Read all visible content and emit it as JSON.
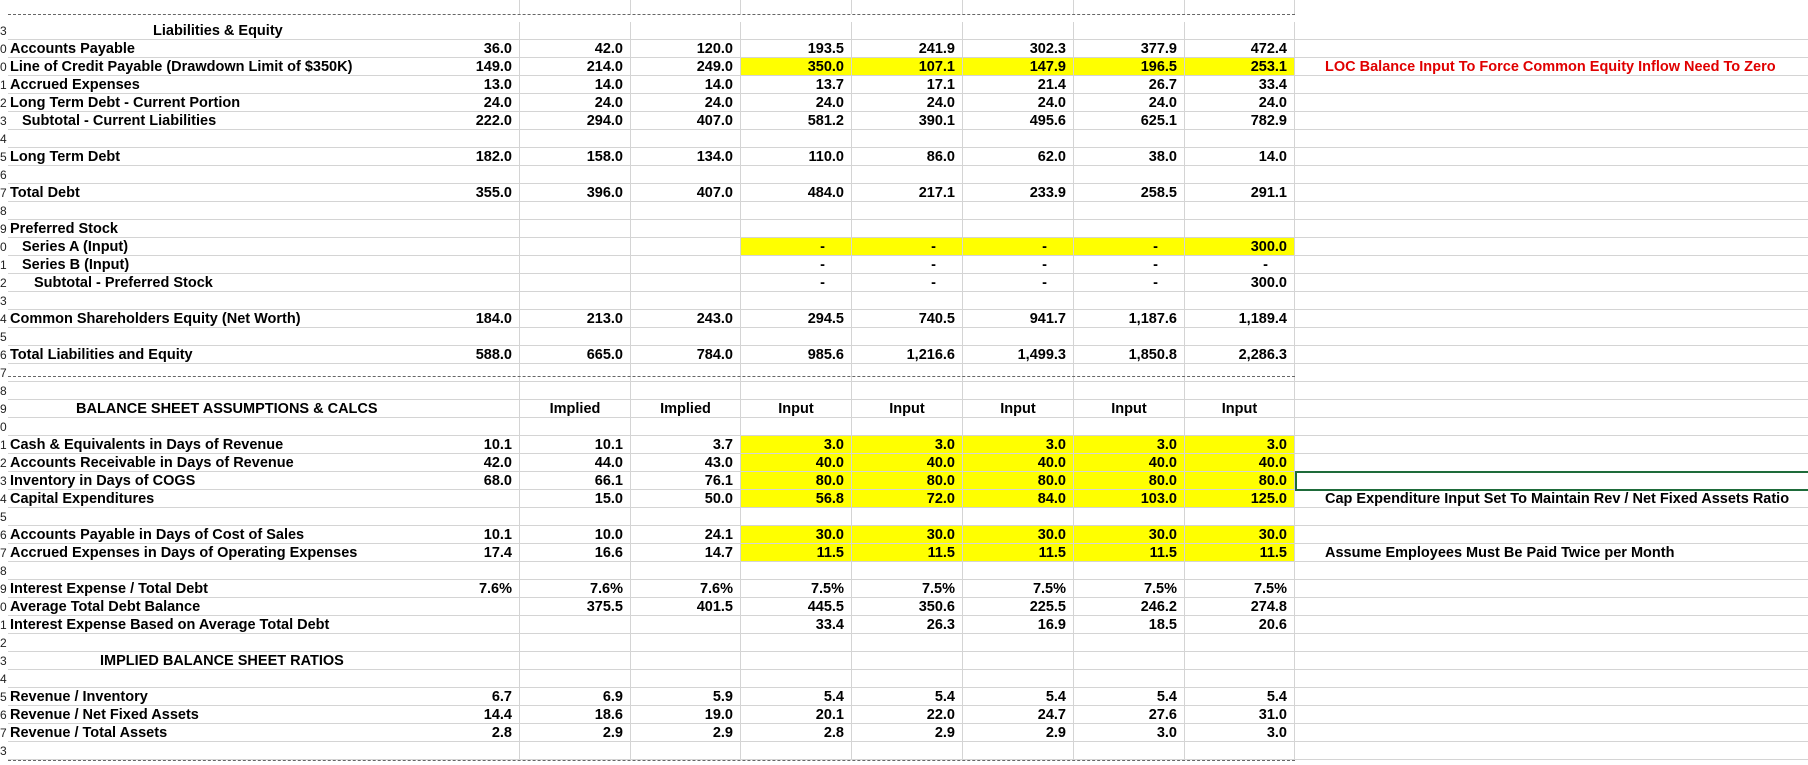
{
  "sections": {
    "liabilities_header": "Liabilities & Equity",
    "assumptions_header": "BALANCE SHEET ASSUMPTIONS & CALCS",
    "ratios_header": "IMPLIED BALANCE SHEET RATIOS"
  },
  "column_types": [
    "",
    "Implied",
    "Implied",
    "Input",
    "Input",
    "Input",
    "Input",
    "Input"
  ],
  "notes": {
    "loc": "LOC Balance Input To Force Common Equity Inflow Need To Zero",
    "capex": "Cap Expenditure Input Set To Maintain Rev / Net Fixed Assets Ratio",
    "accrued": "Assume Employees Must Be Paid Twice per Month"
  },
  "rows": [
    {
      "rn": "3",
      "label": "Liabilities & Equity",
      "header": true,
      "values": []
    },
    {
      "rn": "0",
      "label": "Accounts Payable",
      "values": [
        "36.0",
        "42.0",
        "120.0",
        "193.5",
        "241.9",
        "302.3",
        "377.9",
        "472.4"
      ]
    },
    {
      "rn": "0",
      "label": "Line of Credit Payable (Drawdown Limit of $350K)",
      "values": [
        "149.0",
        "214.0",
        "249.0",
        "350.0",
        "107.1",
        "147.9",
        "196.5",
        "253.1"
      ]
    },
    {
      "rn": "1",
      "label": "Accrued Expenses",
      "values": [
        "13.0",
        "14.0",
        "14.0",
        "13.7",
        "17.1",
        "21.4",
        "26.7",
        "33.4"
      ]
    },
    {
      "rn": "2",
      "label": "Long Term Debt - Current Portion",
      "values": [
        "24.0",
        "24.0",
        "24.0",
        "24.0",
        "24.0",
        "24.0",
        "24.0",
        "24.0"
      ]
    },
    {
      "rn": "3",
      "label": "Subtotal - Current Liabilities",
      "values": [
        "222.0",
        "294.0",
        "407.0",
        "581.2",
        "390.1",
        "495.6",
        "625.1",
        "782.9"
      ]
    },
    {
      "rn": "4",
      "label": "",
      "values": []
    },
    {
      "rn": "5",
      "label": "Long Term Debt",
      "values": [
        "182.0",
        "158.0",
        "134.0",
        "110.0",
        "86.0",
        "62.0",
        "38.0",
        "14.0"
      ]
    },
    {
      "rn": "6",
      "label": "",
      "values": []
    },
    {
      "rn": "7",
      "label": "Total Debt",
      "values": [
        "355.0",
        "396.0",
        "407.0",
        "484.0",
        "217.1",
        "233.9",
        "258.5",
        "291.1"
      ]
    },
    {
      "rn": "8",
      "label": "",
      "values": []
    },
    {
      "rn": "9",
      "label": "Preferred Stock",
      "values": []
    },
    {
      "rn": "0",
      "label": "Series A (Input)",
      "values": [
        "",
        "",
        "",
        "-",
        "-",
        "-",
        "-",
        "300.0"
      ]
    },
    {
      "rn": "1",
      "label": "Series B (Input)",
      "values": [
        "",
        "",
        "",
        "-",
        "-",
        "-",
        "-",
        "-"
      ]
    },
    {
      "rn": "2",
      "label": "Subtotal - Preferred Stock",
      "values": [
        "",
        "",
        "",
        "-",
        "-",
        "-",
        "-",
        "300.0"
      ]
    },
    {
      "rn": "3",
      "label": "",
      "values": []
    },
    {
      "rn": "4",
      "label": "Common Shareholders Equity (Net Worth)",
      "values": [
        "184.0",
        "213.0",
        "243.0",
        "294.5",
        "740.5",
        "941.7",
        "1,187.6",
        "1,189.4"
      ]
    },
    {
      "rn": "5",
      "label": "",
      "values": []
    },
    {
      "rn": "6",
      "label": "Total Liabilities and Equity",
      "values": [
        "588.0",
        "665.0",
        "784.0",
        "985.6",
        "1,216.6",
        "1,499.3",
        "1,850.8",
        "2,286.3"
      ]
    },
    {
      "rn": "7",
      "label": "",
      "values": []
    },
    {
      "rn": "8",
      "label": "",
      "values": []
    },
    {
      "rn": "9",
      "label": "BALANCE SHEET ASSUMPTIONS & CALCS",
      "header": true,
      "values": []
    },
    {
      "rn": "0",
      "label": "",
      "values": []
    },
    {
      "rn": "1",
      "label": "Cash & Equivalents in Days of Revenue",
      "values": [
        "10.1",
        "10.1",
        "3.7",
        "3.0",
        "3.0",
        "3.0",
        "3.0",
        "3.0"
      ]
    },
    {
      "rn": "2",
      "label": "Accounts Receivable in Days of Revenue",
      "values": [
        "42.0",
        "44.0",
        "43.0",
        "40.0",
        "40.0",
        "40.0",
        "40.0",
        "40.0"
      ]
    },
    {
      "rn": "3",
      "label": "Inventory in Days of COGS",
      "values": [
        "68.0",
        "66.1",
        "76.1",
        "80.0",
        "80.0",
        "80.0",
        "80.0",
        "80.0"
      ]
    },
    {
      "rn": "4",
      "label": "Capital Expenditures",
      "values": [
        "",
        "15.0",
        "50.0",
        "56.8",
        "72.0",
        "84.0",
        "103.0",
        "125.0"
      ]
    },
    {
      "rn": "5",
      "label": "",
      "values": []
    },
    {
      "rn": "6",
      "label": "Accounts Payable in Days of Cost of Sales",
      "values": [
        "10.1",
        "10.0",
        "24.1",
        "30.0",
        "30.0",
        "30.0",
        "30.0",
        "30.0"
      ]
    },
    {
      "rn": "7",
      "label": "Accrued Expenses in Days of Operating Expenses",
      "values": [
        "17.4",
        "16.6",
        "14.7",
        "11.5",
        "11.5",
        "11.5",
        "11.5",
        "11.5"
      ]
    },
    {
      "rn": "8",
      "label": "",
      "values": []
    },
    {
      "rn": "9",
      "label": "Interest Expense / Total Debt",
      "values": [
        "7.6%",
        "7.6%",
        "7.6%",
        "7.5%",
        "7.5%",
        "7.5%",
        "7.5%",
        "7.5%"
      ]
    },
    {
      "rn": "0",
      "label": "Average Total Debt Balance",
      "values": [
        "",
        "375.5",
        "401.5",
        "445.5",
        "350.6",
        "225.5",
        "246.2",
        "274.8"
      ]
    },
    {
      "rn": "1",
      "label": "Interest Expense Based on Average Total Debt",
      "values": [
        "",
        "",
        "",
        "33.4",
        "26.3",
        "16.9",
        "18.5",
        "20.6"
      ]
    },
    {
      "rn": "2",
      "label": "",
      "values": []
    },
    {
      "rn": "3",
      "label": "IMPLIED BALANCE SHEET RATIOS",
      "header": true,
      "values": []
    },
    {
      "rn": "4",
      "label": "",
      "values": []
    },
    {
      "rn": "5",
      "label": "Revenue / Inventory",
      "values": [
        "6.7",
        "6.9",
        "5.9",
        "5.4",
        "5.4",
        "5.4",
        "5.4",
        "5.4"
      ]
    },
    {
      "rn": "6",
      "label": "Revenue / Net Fixed Assets",
      "values": [
        "14.4",
        "18.6",
        "19.0",
        "20.1",
        "22.0",
        "24.7",
        "27.6",
        "31.0"
      ]
    },
    {
      "rn": "7",
      "label": "Revenue / Total Assets",
      "values": [
        "2.8",
        "2.9",
        "2.9",
        "2.8",
        "2.9",
        "2.9",
        "3.0",
        "3.0"
      ]
    },
    {
      "rn": "3",
      "label": "",
      "values": []
    }
  ],
  "colors": {
    "input_highlight": "#ffff00",
    "note_red": "#e00000",
    "selection": "#1e6b3a"
  }
}
